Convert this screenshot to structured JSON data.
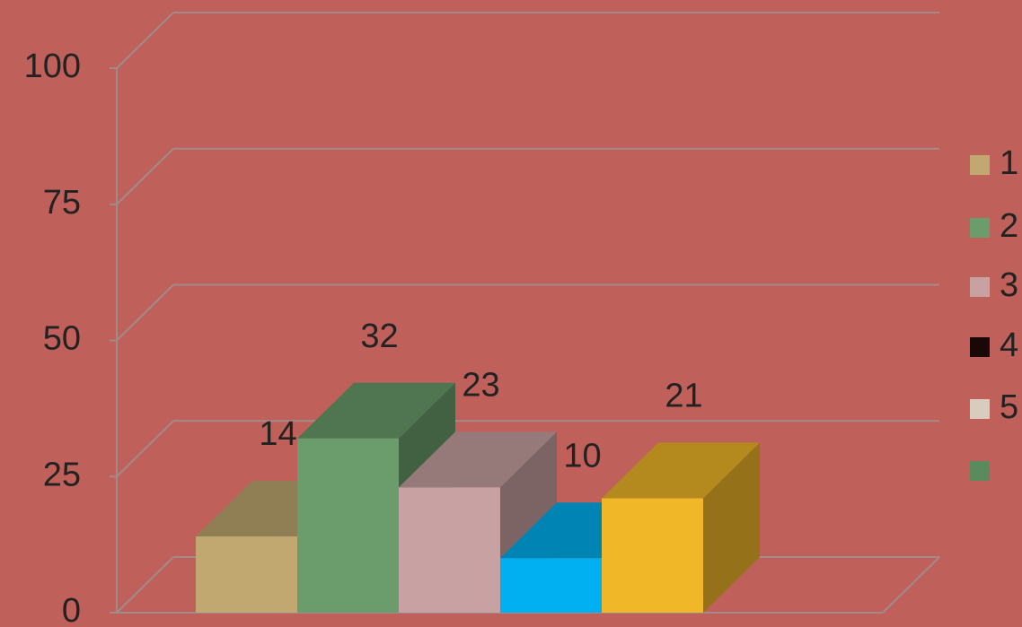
{
  "chart_data": {
    "type": "bar3d",
    "categories": [
      null,
      null,
      null,
      null,
      null
    ],
    "values": [
      14,
      32,
      23,
      10,
      21
    ],
    "colors": [
      "#c0a870",
      "#6a9c6c",
      "#c8a2a2",
      "#00b0f0",
      "#f0b828"
    ],
    "ylim": [
      0,
      100
    ],
    "yticks": [
      0,
      25,
      50,
      75,
      100
    ],
    "grid": true,
    "legend": [
      {
        "label": "1",
        "color": "#c0a870"
      },
      {
        "label": "2",
        "color": "#6a9c6c"
      },
      {
        "label": "3",
        "color": "#c8a2a2"
      },
      {
        "label": "4",
        "color": "#1a0808"
      },
      {
        "label": "5",
        "color": "#d8ccbc"
      },
      {
        "label": null,
        "color": "#5a8a5e"
      }
    ]
  }
}
